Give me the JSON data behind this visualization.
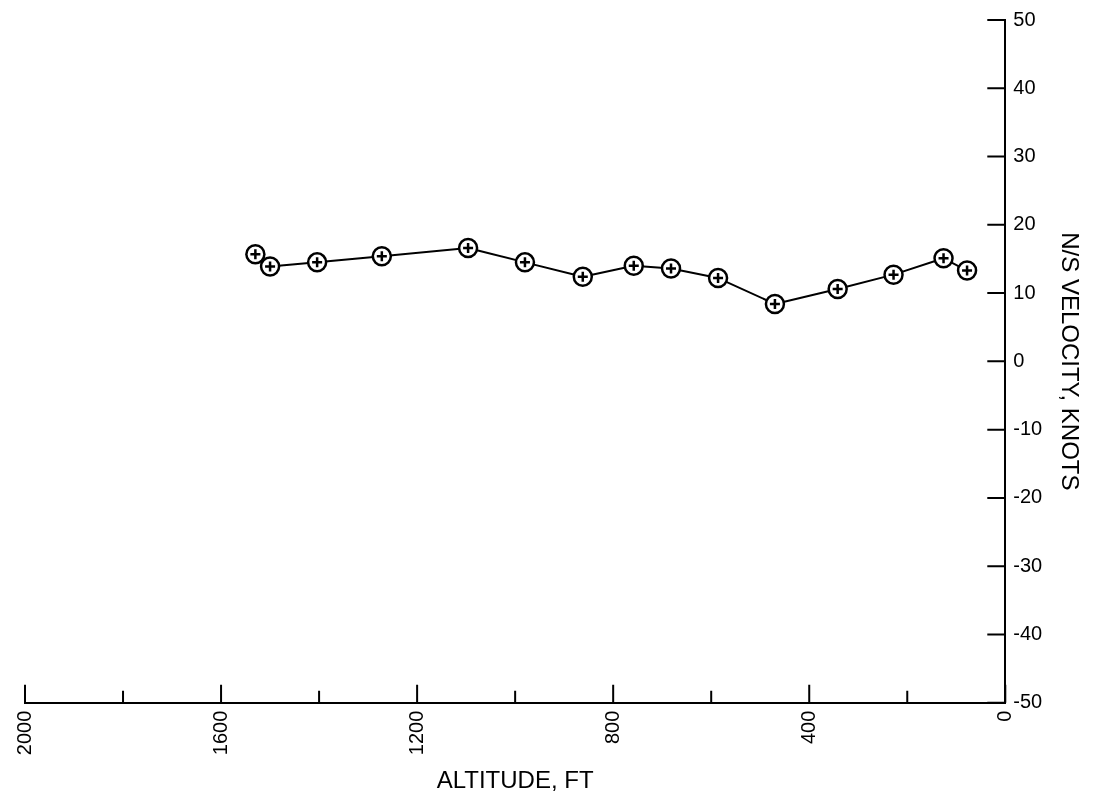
{
  "chart_data": {
    "type": "line",
    "xlabel": "ALTITUDE, FT",
    "ylabel": "N/S VELOCITY, KNOTS",
    "x": [
      1530,
      1500,
      1404,
      1272,
      1096,
      980,
      862,
      758,
      682,
      586,
      470,
      342,
      228,
      126,
      78
    ],
    "series": [
      {
        "color": "#000000",
        "values": [
          15.7,
          13.9,
          14.5,
          15.4,
          16.6,
          14.5,
          12.4,
          14.0,
          13.6,
          12.2,
          8.4,
          10.6,
          12.7,
          15.1,
          13.3
        ]
      }
    ],
    "xlim": [
      2000,
      0
    ],
    "xticks": [
      2000,
      {
        "value": 1800,
        "label": null
      },
      1600,
      {
        "value": 1400,
        "label": null
      },
      1200,
      {
        "value": 1000,
        "label": null
      },
      800,
      {
        "value": 600,
        "label": null
      },
      400,
      {
        "value": 200,
        "label": null
      },
      0
    ],
    "ylim": [
      -50,
      50
    ],
    "yticks": [
      -50,
      -40,
      -30,
      -20,
      -10,
      0,
      10,
      20,
      30,
      40,
      50
    ],
    "grid": false,
    "legend": false,
    "marker": "circle",
    "line_style": "solid"
  }
}
